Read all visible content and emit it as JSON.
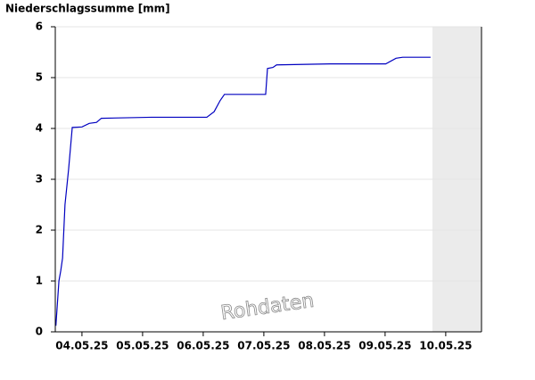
{
  "chart_data": {
    "type": "line",
    "title": "Niederschlagssumme [mm]",
    "annotation": "Rohdaten",
    "x": [
      4.07,
      4.12,
      4.15,
      4.18,
      4.22,
      4.28,
      4.34,
      4.5,
      4.62,
      4.74,
      4.82,
      5.65,
      6.56,
      6.68,
      6.78,
      6.85,
      7.53,
      7.56,
      7.65,
      7.71,
      8.59,
      9.51,
      9.68,
      9.79,
      10.25
    ],
    "series": [
      {
        "name": "Niederschlagssumme",
        "color": "#0000c0",
        "values": [
          0.12,
          1.0,
          1.2,
          1.45,
          2.5,
          3.2,
          4.02,
          4.03,
          4.1,
          4.12,
          4.2,
          4.22,
          4.22,
          4.33,
          4.55,
          4.67,
          4.67,
          5.18,
          5.2,
          5.25,
          5.27,
          5.27,
          5.38,
          5.4,
          5.4
        ]
      }
    ],
    "xlim": [
      4.06,
      11.09
    ],
    "xticks": [
      {
        "value": 4.5,
        "label": "04.05.25"
      },
      {
        "value": 5.5,
        "label": "05.05.25"
      },
      {
        "value": 6.5,
        "label": "06.05.25"
      },
      {
        "value": 7.5,
        "label": "07.05.25"
      },
      {
        "value": 8.5,
        "label": "08.05.25"
      },
      {
        "value": 9.5,
        "label": "09.05.25"
      },
      {
        "value": 10.5,
        "label": "10.05.25"
      }
    ],
    "ylim": [
      0,
      6
    ],
    "yticks": [
      0,
      1,
      2,
      3,
      4,
      5,
      6
    ],
    "grid": true,
    "shaded_x": [
      10.28,
      11.09
    ],
    "shade_color": "#ebebeb"
  }
}
